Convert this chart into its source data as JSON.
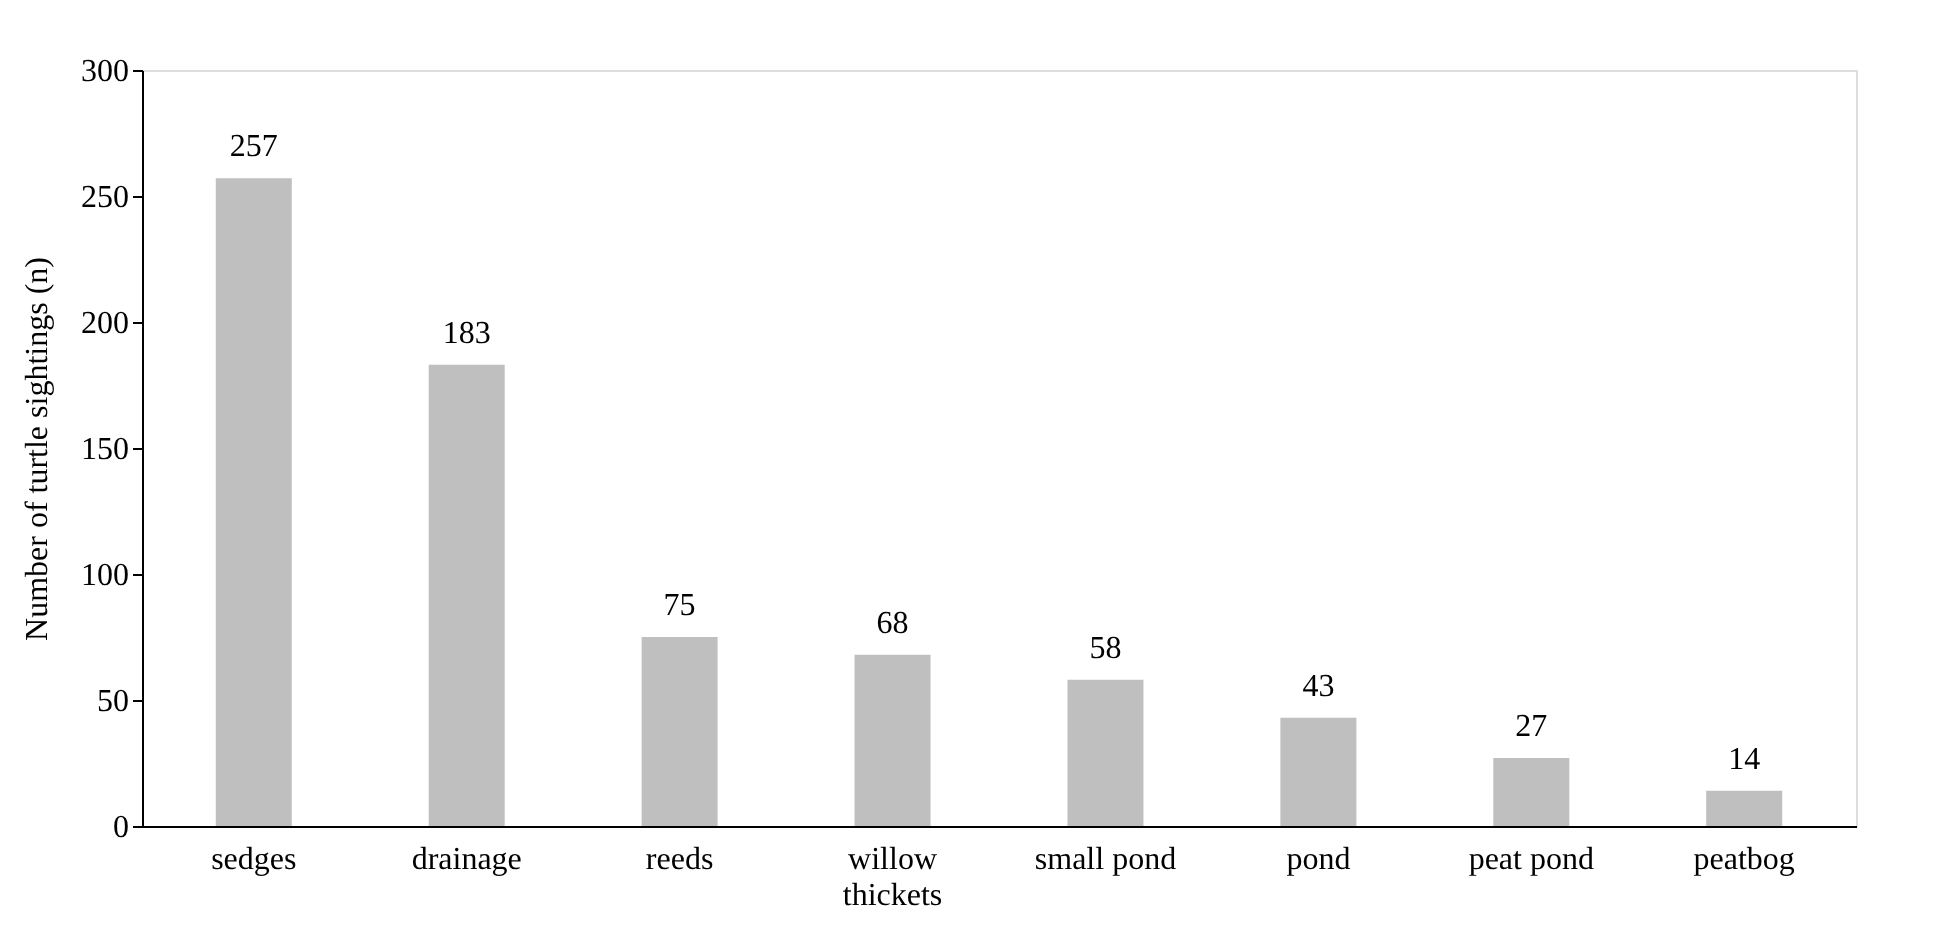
{
  "chart_data": {
    "type": "bar",
    "ylabel": "Number of turtle sightings (n)",
    "categories": [
      "sedges",
      "drainage",
      "reeds",
      "willow thickets",
      "small pond",
      "pond",
      "peat pond",
      "peatbog"
    ],
    "values": [
      257,
      183,
      75,
      68,
      58,
      43,
      27,
      14
    ],
    "color": "#bfbfbf",
    "ylim": [
      0,
      300
    ],
    "yticks": [
      0,
      50,
      100,
      150,
      200,
      250,
      300
    ],
    "grid": false,
    "data_labels": true
  }
}
